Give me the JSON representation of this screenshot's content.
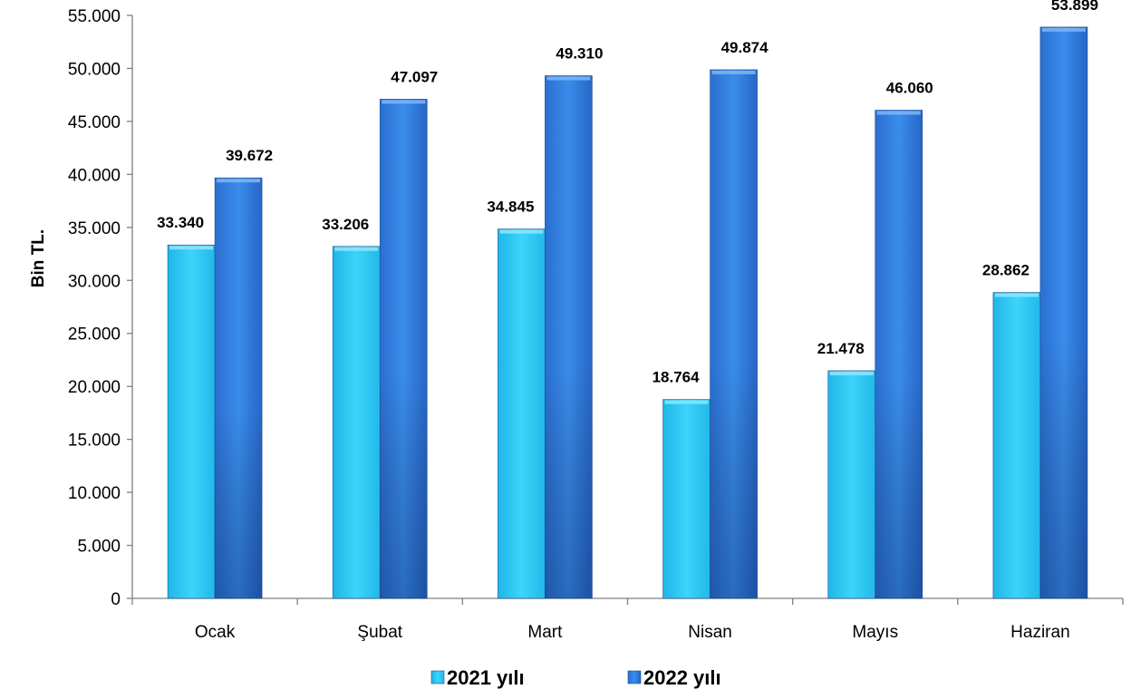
{
  "chart_data": {
    "type": "bar",
    "title": "",
    "xlabel": "",
    "ylabel": "Bin TL.",
    "categories": [
      "Ocak",
      "Şubat",
      "Mart",
      "Nisan",
      "Mayıs",
      "Haziran"
    ],
    "series": [
      {
        "name": "2021 yılı",
        "color": "#29C8F2",
        "values": [
          33340,
          33206,
          34845,
          18764,
          21478,
          28862
        ],
        "value_labels": [
          "33.340",
          "33.206",
          "34.845",
          "18.764",
          "21.478",
          "28.862"
        ]
      },
      {
        "name": "2022 yılı",
        "color": "#2F7FE0",
        "values": [
          39672,
          47097,
          49310,
          49874,
          46060,
          53899
        ],
        "value_labels": [
          "39.672",
          "47.097",
          "49.310",
          "49.874",
          "46.060",
          "53.899"
        ]
      }
    ],
    "ylim": [
      0,
      55000
    ],
    "yticks": [
      0,
      5000,
      10000,
      15000,
      20000,
      25000,
      30000,
      35000,
      40000,
      45000,
      50000,
      55000
    ],
    "ytick_labels": [
      "0",
      "5.000",
      "10.000",
      "15.000",
      "20.000",
      "25.000",
      "30.000",
      "35.000",
      "40.000",
      "45.000",
      "50.000",
      "55.000"
    ],
    "grid": false,
    "legend_position": "bottom-center"
  }
}
